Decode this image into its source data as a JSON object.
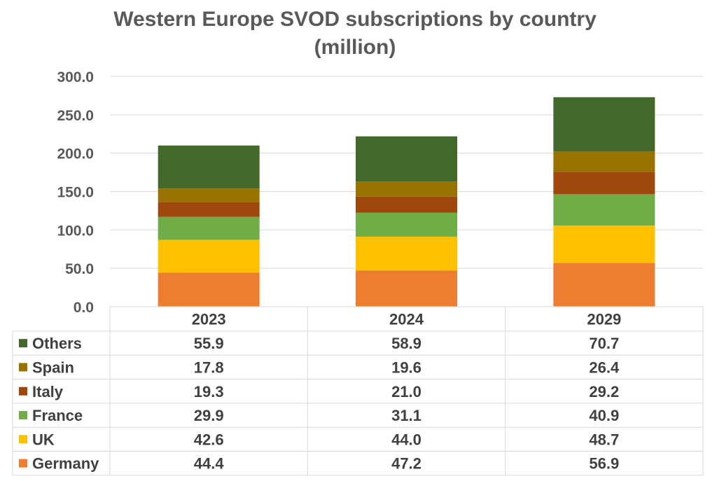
{
  "chart_data": {
    "type": "bar",
    "stacked": true,
    "title": "Western Europe SVOD subscriptions by country (million)",
    "title_lines": [
      "Western Europe SVOD subscriptions by country",
      "(million)"
    ],
    "categories": [
      "2023",
      "2024",
      "2029"
    ],
    "ylim": [
      0,
      300
    ],
    "yticks": [
      "0.0",
      "50.0",
      "100.0",
      "150.0",
      "200.0",
      "250.0",
      "300.0"
    ],
    "grid": true,
    "legend_placement": "data-table",
    "series": [
      {
        "name": "Germany",
        "color": "#ED7D31",
        "values": [
          44.4,
          47.2,
          56.9
        ],
        "labels": [
          "44.4",
          "47.2",
          "56.9"
        ]
      },
      {
        "name": "UK",
        "color": "#FFC000",
        "values": [
          42.6,
          44.0,
          48.7
        ],
        "labels": [
          "42.6",
          "44.0",
          "48.7"
        ]
      },
      {
        "name": "France",
        "color": "#70AD47",
        "values": [
          29.9,
          31.1,
          40.9
        ],
        "labels": [
          "29.9",
          "31.1",
          "40.9"
        ]
      },
      {
        "name": "Italy",
        "color": "#9E480E",
        "values": [
          19.3,
          21.0,
          29.2
        ],
        "labels": [
          "19.3",
          "21.0",
          "29.2"
        ]
      },
      {
        "name": "Spain",
        "color": "#997300",
        "values": [
          17.8,
          19.6,
          26.4
        ],
        "labels": [
          "17.8",
          "19.6",
          "26.4"
        ]
      },
      {
        "name": "Others",
        "color": "#43682B",
        "values": [
          55.9,
          58.9,
          70.7
        ],
        "labels": [
          "55.9",
          "58.9",
          "70.7"
        ]
      }
    ]
  }
}
